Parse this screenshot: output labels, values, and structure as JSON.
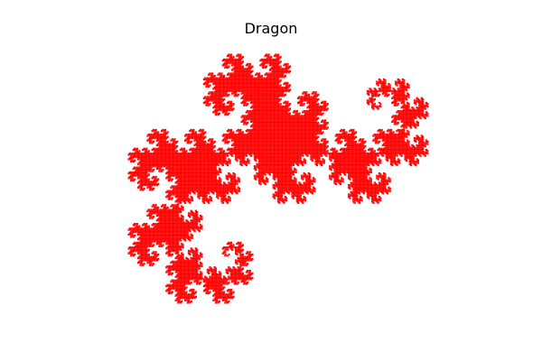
{
  "figure": {
    "title": "Dragon"
  },
  "curve": {
    "name": "dragon-curve",
    "iterations": 15,
    "color": "#ff0000"
  }
}
